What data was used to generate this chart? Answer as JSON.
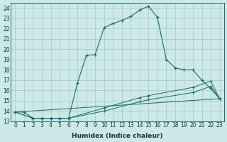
{
  "xlabel": "Humidex (Indice chaleur)",
  "bg_color": "#cce8e8",
  "grid_color": "#aacccc",
  "line_color": "#1a6b6b",
  "xlim": [
    -0.5,
    23.5
  ],
  "ylim": [
    13,
    24.5
  ],
  "xticks": [
    0,
    1,
    2,
    3,
    4,
    5,
    6,
    7,
    8,
    9,
    10,
    11,
    12,
    13,
    14,
    15,
    16,
    17,
    18,
    19,
    20,
    21,
    22,
    23
  ],
  "yticks": [
    13,
    14,
    15,
    16,
    17,
    18,
    19,
    20,
    21,
    22,
    23,
    24
  ],
  "line1_x": [
    0,
    1,
    2,
    3,
    4,
    5,
    6,
    7,
    8,
    9,
    10,
    11,
    12,
    13,
    14,
    15,
    16,
    17,
    18,
    19,
    20,
    21,
    22,
    23
  ],
  "line1_y": [
    13.9,
    13.9,
    13.3,
    13.3,
    13.3,
    13.3,
    13.3,
    16.7,
    19.4,
    19.5,
    22.1,
    22.5,
    22.8,
    23.2,
    23.8,
    24.2,
    23.1,
    19.0,
    18.2,
    18.0,
    18.0,
    17.0,
    16.2,
    15.2
  ],
  "line2_x": [
    0,
    2,
    3,
    4,
    5,
    6,
    10,
    14,
    15,
    20,
    22,
    23
  ],
  "line2_y": [
    13.9,
    13.3,
    13.3,
    13.3,
    13.3,
    13.3,
    14.3,
    15.3,
    15.5,
    16.3,
    16.9,
    15.2
  ],
  "line3_x": [
    0,
    2,
    3,
    4,
    5,
    6,
    10,
    14,
    15,
    20,
    22,
    23
  ],
  "line3_y": [
    13.9,
    13.3,
    13.3,
    13.3,
    13.3,
    13.3,
    14.0,
    14.9,
    15.1,
    15.8,
    16.4,
    15.2
  ],
  "line4_x": [
    0,
    23
  ],
  "line4_y": [
    13.9,
    15.2
  ]
}
